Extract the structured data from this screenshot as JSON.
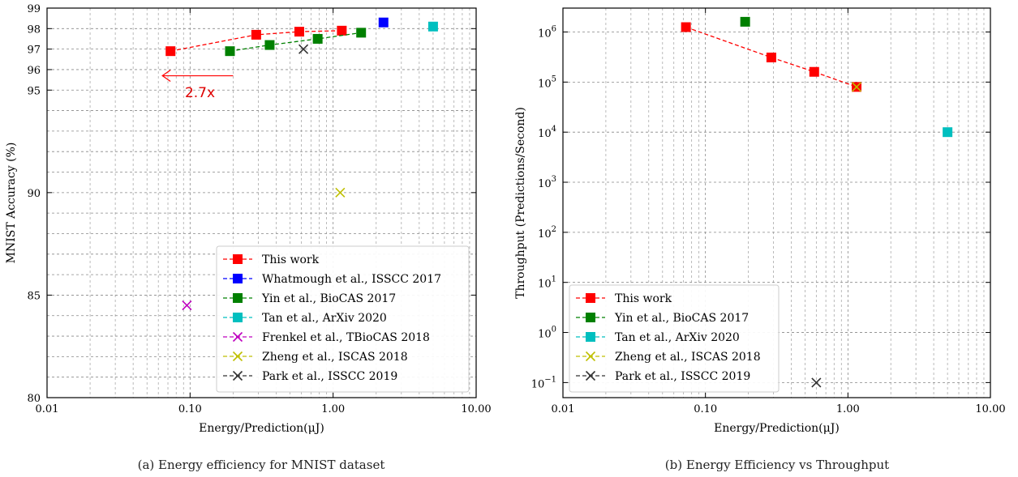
{
  "chart_data": [
    {
      "type": "scatter",
      "caption": "(a) Energy efficiency for MNIST dataset",
      "xlabel": "Energy/Prediction(μJ)",
      "ylabel": "MNIST Accuracy (%)",
      "xscale": "log",
      "xlim": [
        0.01,
        10
      ],
      "ylim": [
        80,
        99
      ],
      "xticks": [
        0.01,
        0.1,
        1,
        10
      ],
      "xtick_labels": [
        "0.01",
        "0.10",
        "1.00",
        "10.00"
      ],
      "yticks": [
        80,
        85,
        90,
        95,
        96,
        97,
        98,
        99
      ],
      "ytick_labels": [
        "80",
        "85",
        "90",
        "95",
        "96",
        "97",
        "98",
        "99"
      ],
      "yminor": [
        81,
        82,
        83,
        84,
        86,
        87,
        88,
        89,
        91,
        92,
        93,
        94
      ],
      "grid": true,
      "legend_position": "lower-right",
      "series": [
        {
          "name": "This work",
          "color": "#ff0000",
          "marker": "square",
          "line": true,
          "x": [
            0.073,
            0.29,
            0.58,
            1.15
          ],
          "y": [
            96.9,
            97.7,
            97.85,
            97.9
          ]
        },
        {
          "name": "Whatmough et al., ISSCC 2017",
          "color": "#0000ff",
          "marker": "square",
          "line": false,
          "x": [
            2.25
          ],
          "y": [
            98.3
          ]
        },
        {
          "name": "Yin et al., BioCAS 2017",
          "color": "#008000",
          "marker": "square",
          "line": true,
          "x": [
            0.19,
            0.36,
            0.78,
            1.57
          ],
          "y": [
            96.9,
            97.2,
            97.5,
            97.8
          ]
        },
        {
          "name": "Tan et al., ArXiv 2020",
          "color": "#00bfbf",
          "marker": "square",
          "line": false,
          "x": [
            5.0
          ],
          "y": [
            98.1
          ]
        },
        {
          "name": "Frenkel et al., TBioCAS 2018",
          "color": "#bf00bf",
          "marker": "x",
          "line": false,
          "x": [
            0.095
          ],
          "y": [
            84.5
          ]
        },
        {
          "name": "Zheng et al., ISCAS 2018",
          "color": "#bfbf00",
          "marker": "x",
          "line": false,
          "x": [
            1.12
          ],
          "y": [
            90.0
          ]
        },
        {
          "name": "Park et al., ISSCC 2019",
          "color": "#333333",
          "marker": "x",
          "line": false,
          "x": [
            0.62
          ],
          "y": [
            97.0
          ]
        }
      ],
      "annotation": {
        "text": "2.7x",
        "color": "#ff0000",
        "arrow_from": [
          0.2,
          95.7
        ],
        "arrow_to": [
          0.064,
          95.7
        ],
        "text_at": [
          0.092,
          94.9
        ]
      }
    },
    {
      "type": "scatter",
      "caption": "(b) Energy Efficiency vs Throughput",
      "xlabel": "Energy/Prediction(μJ)",
      "ylabel": "Throughput (Predictions/Second)",
      "xscale": "log",
      "yscale": "log",
      "xlim": [
        0.01,
        10
      ],
      "ylim": [
        0.05,
        3000000
      ],
      "xticks": [
        0.01,
        0.1,
        1,
        10
      ],
      "xtick_labels": [
        "0.01",
        "0.10",
        "1.00",
        "10.00"
      ],
      "yticks": [
        0.1,
        1,
        10,
        100,
        1000,
        10000,
        100000,
        1000000
      ],
      "ytick_base": "10",
      "ytick_exponents": [
        "−1",
        "0",
        "1",
        "2",
        "3",
        "4",
        "5",
        "6"
      ],
      "grid": true,
      "legend_position": "lower-left",
      "series": [
        {
          "name": "This work",
          "color": "#ff0000",
          "marker": "square",
          "line": true,
          "x": [
            0.073,
            0.29,
            0.58,
            1.15
          ],
          "y": [
            1250000,
            310000,
            160000,
            80000
          ]
        },
        {
          "name": "Yin et al., BioCAS 2017",
          "color": "#008000",
          "marker": "square",
          "line": false,
          "x": [
            0.19
          ],
          "y": [
            1600000
          ]
        },
        {
          "name": "Tan et al., ArXiv 2020",
          "color": "#00bfbf",
          "marker": "square",
          "line": false,
          "x": [
            5.0
          ],
          "y": [
            10000
          ]
        },
        {
          "name": "Zheng et al., ISCAS 2018",
          "color": "#bfbf00",
          "marker": "x",
          "line": false,
          "x": [
            1.15
          ],
          "y": [
            80000
          ]
        },
        {
          "name": "Park et al., ISSCC 2019",
          "color": "#333333",
          "marker": "x",
          "line": false,
          "x": [
            0.6
          ],
          "y": [
            0.1
          ]
        }
      ]
    }
  ]
}
